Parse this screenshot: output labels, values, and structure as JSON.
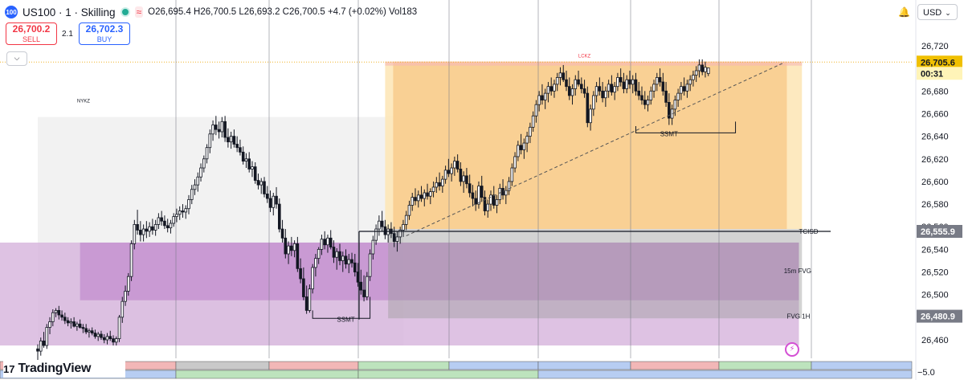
{
  "header": {
    "symbol_badge": "100",
    "title": "US100 · 1 · Skilling",
    "ohlc": "O26,695.4 H26,700.5 L26,693.2 C26,700.5 +4.7 (+0.02%) Vol183"
  },
  "trade": {
    "sell_price": "26,700.2",
    "sell_label": "SELL",
    "spread": "2.1",
    "buy_price": "26,702.3",
    "buy_label": "BUY"
  },
  "currency": "USD",
  "logo": {
    "text": "TradingView"
  },
  "bottom_axis_label": "−5.0",
  "colors": {
    "up": "#26a69a",
    "down": "#ef5350",
    "candle_border": "#131722",
    "candle_up_fill": "#ffffff",
    "candle_down_fill": "#131722"
  },
  "chart_data": {
    "type": "candlestick",
    "y_axis": {
      "ticks": [
        26720,
        26700,
        26680,
        26660,
        26640,
        26620,
        26600,
        26580,
        26560,
        26540,
        26520,
        26500,
        26480,
        26460
      ],
      "tick_labels": [
        "26,720",
        "26,700",
        "26,680",
        "26,660",
        "26,640",
        "26,620",
        "26,600",
        "26,580",
        "26,560",
        "26,540",
        "26,520",
        "26,500",
        "26,480",
        "26,460"
      ],
      "range": [
        26450,
        26727
      ]
    },
    "price_tags": [
      {
        "value": 26705.6,
        "label": "26,705.6",
        "style": "current"
      },
      {
        "value": 26699,
        "label": "00:31",
        "style": "timer"
      },
      {
        "value": 26555.9,
        "label": "26,555.9",
        "style": "level"
      },
      {
        "value": 26480.9,
        "label": "26,480.9",
        "style": "level"
      }
    ],
    "zones": [
      {
        "name": "LCKZ",
        "from_bar": 115,
        "to_bar": 253,
        "top": 26706,
        "bottom": 26558
      },
      {
        "name": "NYKZ",
        "from_bar": 0,
        "to_bar": 121,
        "top": 26657,
        "bottom": 26455
      },
      {
        "name": "15m FVG",
        "from_bar": 14,
        "to_bar": 252,
        "top": 26546,
        "bottom": 26495
      },
      {
        "name": "FVG 1H",
        "from_bar": 0,
        "to_bar": 252,
        "top": 26546,
        "bottom": 26455
      }
    ],
    "labels": [
      {
        "text": "LCKZ",
        "bar": 181,
        "value": 26712
      },
      {
        "text": "NYKZ",
        "bar": 13,
        "value": 26672
      },
      {
        "text": "TCISD",
        "bar": 252,
        "value": 26555.9
      },
      {
        "text": "15m FVG",
        "bar": 247,
        "value": 26521
      },
      {
        "text": "FVG 1H",
        "bar": 248,
        "value": 26481
      },
      {
        "text": "SSMT",
        "bar": 102,
        "value": 26479
      },
      {
        "text": "SSMT",
        "bar": 209,
        "value": 26643
      }
    ],
    "candles": [
      [
        26452,
        26456,
        26441,
        26450
      ],
      [
        26450,
        26462,
        26446,
        26459
      ],
      [
        26459,
        26467,
        26453,
        26455
      ],
      [
        26455,
        26474,
        26452,
        26471
      ],
      [
        26471,
        26480,
        26465,
        26476
      ],
      [
        26476,
        26487,
        26472,
        26484
      ],
      [
        26484,
        26488,
        26480,
        26486
      ],
      [
        26486,
        26490,
        26478,
        26482
      ],
      [
        26482,
        26486,
        26477,
        26480
      ],
      [
        26480,
        26484,
        26474,
        26477
      ],
      [
        26477,
        26480,
        26472,
        26475
      ],
      [
        26475,
        26479,
        26470,
        26476
      ],
      [
        26476,
        26480,
        26471,
        26472
      ],
      [
        26472,
        26476,
        26468,
        26474
      ],
      [
        26474,
        26478,
        26470,
        26471
      ],
      [
        26471,
        26474,
        26466,
        26470
      ],
      [
        26470,
        26474,
        26465,
        26467
      ],
      [
        26467,
        26470,
        26462,
        26468
      ],
      [
        26468,
        26471,
        26464,
        26466
      ],
      [
        26466,
        26469,
        26461,
        26463
      ],
      [
        26463,
        26467,
        26459,
        26465
      ],
      [
        26465,
        26468,
        26460,
        26462
      ],
      [
        26462,
        26465,
        26457,
        26460
      ],
      [
        26460,
        26466,
        26456,
        26463
      ],
      [
        26463,
        26468,
        26459,
        26461
      ],
      [
        26461,
        26464,
        26455,
        26458
      ],
      [
        26458,
        26463,
        26455,
        26461
      ],
      [
        26461,
        26482,
        26458,
        26480
      ],
      [
        26480,
        26498,
        26475,
        26494
      ],
      [
        26494,
        26508,
        26490,
        26503
      ],
      [
        26503,
        26519,
        26499,
        26516
      ],
      [
        26516,
        26548,
        26512,
        26545
      ],
      [
        26545,
        26566,
        26540,
        26562
      ],
      [
        26562,
        26575,
        26553,
        26557
      ],
      [
        26557,
        26565,
        26547,
        26553
      ],
      [
        26553,
        26562,
        26547,
        26558
      ],
      [
        26558,
        26565,
        26550,
        26556
      ],
      [
        26556,
        26564,
        26551,
        26560
      ],
      [
        26560,
        26567,
        26553,
        26557
      ],
      [
        26557,
        26566,
        26552,
        26562
      ],
      [
        26562,
        26572,
        26558,
        26568
      ],
      [
        26568,
        26574,
        26561,
        26565
      ],
      [
        26565,
        26570,
        26558,
        26561
      ],
      [
        26561,
        26567,
        26555,
        26559
      ],
      [
        26559,
        26566,
        26554,
        26563
      ],
      [
        26563,
        26572,
        26560,
        26569
      ],
      [
        26569,
        26576,
        26564,
        26571
      ],
      [
        26571,
        26578,
        26566,
        26574
      ],
      [
        26574,
        26580,
        26568,
        26573
      ],
      [
        26573,
        26579,
        26567,
        26576
      ],
      [
        26576,
        26588,
        26571,
        26584
      ],
      [
        26584,
        26597,
        26580,
        26593
      ],
      [
        26593,
        26602,
        26588,
        26597
      ],
      [
        26597,
        26608,
        26591,
        26604
      ],
      [
        26604,
        26616,
        26600,
        26612
      ],
      [
        26612,
        26623,
        26608,
        26620
      ],
      [
        26620,
        26633,
        26616,
        26630
      ],
      [
        26630,
        26646,
        26625,
        26642
      ],
      [
        26642,
        26654,
        26636,
        26650
      ],
      [
        26650,
        26658,
        26641,
        26646
      ],
      [
        26646,
        26653,
        26638,
        26644
      ],
      [
        26644,
        26657,
        26639,
        26653
      ],
      [
        26653,
        26658,
        26635,
        26639
      ],
      [
        26639,
        26647,
        26630,
        26635
      ],
      [
        26635,
        26644,
        26629,
        26640
      ],
      [
        26640,
        26646,
        26630,
        26633
      ],
      [
        26633,
        26640,
        26626,
        26630
      ],
      [
        26630,
        26637,
        26623,
        26626
      ],
      [
        26626,
        26631,
        26615,
        26618
      ],
      [
        26618,
        26625,
        26612,
        26620
      ],
      [
        26620,
        26626,
        26608,
        26611
      ],
      [
        26611,
        26618,
        26604,
        26613
      ],
      [
        26613,
        26617,
        26598,
        26601
      ],
      [
        26601,
        26607,
        26593,
        26597
      ],
      [
        26597,
        26603,
        26589,
        26600
      ],
      [
        26600,
        26604,
        26586,
        26589
      ],
      [
        26589,
        26596,
        26581,
        26585
      ],
      [
        26585,
        26592,
        26573,
        26577
      ],
      [
        26577,
        26590,
        26570,
        26587
      ],
      [
        26587,
        26595,
        26576,
        26580
      ],
      [
        26580,
        26585,
        26555,
        26558
      ],
      [
        26558,
        26566,
        26546,
        26550
      ],
      [
        26550,
        26558,
        26532,
        26536
      ],
      [
        26536,
        26547,
        26527,
        26543
      ],
      [
        26543,
        26551,
        26534,
        26539
      ],
      [
        26539,
        26548,
        26533,
        26545
      ],
      [
        26545,
        26551,
        26520,
        26523
      ],
      [
        26523,
        26532,
        26510,
        26514
      ],
      [
        26514,
        26524,
        26495,
        26498
      ],
      [
        26498,
        26508,
        26483,
        26486
      ],
      [
        26486,
        26509,
        26484,
        26505
      ],
      [
        26505,
        26527,
        26501,
        26524
      ],
      [
        26524,
        26536,
        26516,
        26532
      ],
      [
        26532,
        26542,
        26527,
        26540
      ],
      [
        26540,
        26553,
        26535,
        26549
      ],
      [
        26549,
        26556,
        26540,
        26544
      ],
      [
        26544,
        26553,
        26537,
        26550
      ],
      [
        26550,
        26557,
        26540,
        26542
      ],
      [
        26542,
        26548,
        26528,
        26533
      ],
      [
        26533,
        26541,
        26522,
        26538
      ],
      [
        26538,
        26545,
        26526,
        26530
      ],
      [
        26530,
        26538,
        26520,
        26534
      ],
      [
        26534,
        26540,
        26523,
        26527
      ],
      [
        26527,
        26536,
        26519,
        26531
      ],
      [
        26531,
        26537,
        26524,
        26528
      ],
      [
        26528,
        26536,
        26516,
        26520
      ],
      [
        26520,
        26528,
        26507,
        26511
      ],
      [
        26511,
        26522,
        26500,
        26504
      ],
      [
        26504,
        26517,
        26494,
        26498
      ],
      [
        26498,
        26520,
        26495,
        26516
      ],
      [
        26516,
        26540,
        26512,
        26536
      ],
      [
        26536,
        26552,
        26531,
        26548
      ],
      [
        26548,
        26562,
        26544,
        26558
      ],
      [
        26558,
        26570,
        26552,
        26565
      ],
      [
        26565,
        26574,
        26556,
        26560
      ],
      [
        26560,
        26566,
        26549,
        26553
      ],
      [
        26553,
        26562,
        26546,
        26558
      ],
      [
        26558,
        26564,
        26550,
        26554
      ],
      [
        26554,
        26560,
        26542,
        26547
      ],
      [
        26547,
        26556,
        26538,
        26551
      ],
      [
        26551,
        26560,
        26545,
        26557
      ],
      [
        26557,
        26566,
        26551,
        26562
      ],
      [
        26562,
        26574,
        26557,
        26570
      ],
      [
        26570,
        26583,
        26566,
        26579
      ],
      [
        26579,
        26590,
        26574,
        26586
      ],
      [
        26586,
        26594,
        26579,
        26583
      ],
      [
        26583,
        26592,
        26577,
        26588
      ],
      [
        26588,
        26596,
        26582,
        26585
      ],
      [
        26585,
        26593,
        26578,
        26590
      ],
      [
        26590,
        26598,
        26584,
        26587
      ],
      [
        26587,
        26594,
        26580,
        26591
      ],
      [
        26591,
        26600,
        26586,
        26595
      ],
      [
        26595,
        26604,
        26590,
        26599
      ],
      [
        26599,
        26608,
        26592,
        26596
      ],
      [
        26596,
        26605,
        26590,
        26602
      ],
      [
        26602,
        26614,
        26598,
        26610
      ],
      [
        26610,
        26620,
        26604,
        26607
      ],
      [
        26607,
        26616,
        26600,
        26612
      ],
      [
        26612,
        26622,
        26605,
        26618
      ],
      [
        26618,
        26624,
        26608,
        26611
      ],
      [
        26611,
        26617,
        26596,
        26600
      ],
      [
        26600,
        26609,
        26590,
        26605
      ],
      [
        26605,
        26612,
        26594,
        26598
      ],
      [
        26598,
        26606,
        26586,
        26590
      ],
      [
        26590,
        26597,
        26578,
        26585
      ],
      [
        26585,
        26592,
        26574,
        26580
      ],
      [
        26580,
        26600,
        26576,
        26596
      ],
      [
        26596,
        26605,
        26582,
        26586
      ],
      [
        26586,
        26592,
        26570,
        26574
      ],
      [
        26574,
        26584,
        26568,
        26580
      ],
      [
        26580,
        26592,
        26574,
        26588
      ],
      [
        26588,
        26596,
        26576,
        26579
      ],
      [
        26579,
        26588,
        26572,
        26584
      ],
      [
        26584,
        26598,
        26580,
        26594
      ],
      [
        26594,
        26602,
        26584,
        26588
      ],
      [
        26588,
        26596,
        26580,
        26592
      ],
      [
        26592,
        26604,
        26588,
        26600
      ],
      [
        26600,
        26616,
        26596,
        26612
      ],
      [
        26612,
        26626,
        26608,
        26622
      ],
      [
        26622,
        26636,
        26618,
        26632
      ],
      [
        26632,
        26642,
        26624,
        26628
      ],
      [
        26628,
        26638,
        26620,
        26634
      ],
      [
        26634,
        26644,
        26626,
        26640
      ],
      [
        26640,
        26652,
        26634,
        26648
      ],
      [
        26648,
        26662,
        26644,
        26658
      ],
      [
        26658,
        26672,
        26652,
        26668
      ],
      [
        26668,
        26680,
        26662,
        26676
      ],
      [
        26676,
        26686,
        26668,
        26672
      ],
      [
        26672,
        26682,
        26664,
        26678
      ],
      [
        26678,
        26688,
        26670,
        26684
      ],
      [
        26684,
        26692,
        26676,
        26680
      ],
      [
        26680,
        26690,
        26674,
        26686
      ],
      [
        26686,
        26696,
        26680,
        26692
      ],
      [
        26692,
        26701,
        26685,
        26696
      ],
      [
        26696,
        26703,
        26688,
        26690
      ],
      [
        26690,
        26698,
        26680,
        26684
      ],
      [
        26684,
        26692,
        26672,
        26676
      ],
      [
        26676,
        26686,
        26668,
        26682
      ],
      [
        26682,
        26694,
        26676,
        26690
      ],
      [
        26690,
        26698,
        26684,
        26686
      ],
      [
        26686,
        26692,
        26678,
        26682
      ],
      [
        26682,
        26690,
        26674,
        26678
      ],
      [
        26678,
        26684,
        26648,
        26652
      ],
      [
        26652,
        26668,
        26645,
        26664
      ],
      [
        26664,
        26680,
        26658,
        26676
      ],
      [
        26676,
        26688,
        26670,
        26684
      ],
      [
        26684,
        26692,
        26676,
        26680
      ],
      [
        26680,
        26688,
        26670,
        26674
      ],
      [
        26674,
        26684,
        26666,
        26680
      ],
      [
        26680,
        26690,
        26674,
        26686
      ],
      [
        26686,
        26694,
        26676,
        26679
      ],
      [
        26679,
        26688,
        26672,
        26684
      ],
      [
        26684,
        26696,
        26680,
        26692
      ],
      [
        26692,
        26700,
        26684,
        26688
      ],
      [
        26688,
        26696,
        26678,
        26682
      ],
      [
        26682,
        26694,
        26678,
        26690
      ],
      [
        26690,
        26698,
        26682,
        26686
      ],
      [
        26686,
        26694,
        26678,
        26690
      ],
      [
        26690,
        26696,
        26676,
        26680
      ],
      [
        26680,
        26688,
        26672,
        26676
      ],
      [
        26676,
        26684,
        26668,
        26672
      ],
      [
        26672,
        26680,
        26664,
        26668
      ],
      [
        26668,
        26676,
        26662,
        26672
      ],
      [
        26672,
        26684,
        26668,
        26680
      ],
      [
        26680,
        26690,
        26674,
        26686
      ],
      [
        26686,
        26696,
        26680,
        26692
      ],
      [
        26692,
        26700,
        26684,
        26688
      ],
      [
        26688,
        26696,
        26676,
        26680
      ],
      [
        26680,
        26688,
        26666,
        26670
      ],
      [
        26670,
        26678,
        26650,
        26656
      ],
      [
        26656,
        26668,
        26650,
        26664
      ],
      [
        26664,
        26676,
        26658,
        26672
      ],
      [
        26672,
        26682,
        26666,
        26678
      ],
      [
        26678,
        26688,
        26672,
        26684
      ],
      [
        26684,
        26692,
        26676,
        26680
      ],
      [
        26680,
        26690,
        26674,
        26686
      ],
      [
        26686,
        26694,
        26680,
        26690
      ],
      [
        26690,
        26698,
        26684,
        26694
      ],
      [
        26694,
        26702,
        26688,
        26698
      ],
      [
        26698,
        26708,
        26692,
        26703
      ],
      [
        26703,
        26708,
        26694,
        26697
      ],
      [
        26697,
        26706,
        26692,
        26701
      ],
      [
        26695.4,
        26700.5,
        26693.2,
        26700.5
      ]
    ]
  }
}
